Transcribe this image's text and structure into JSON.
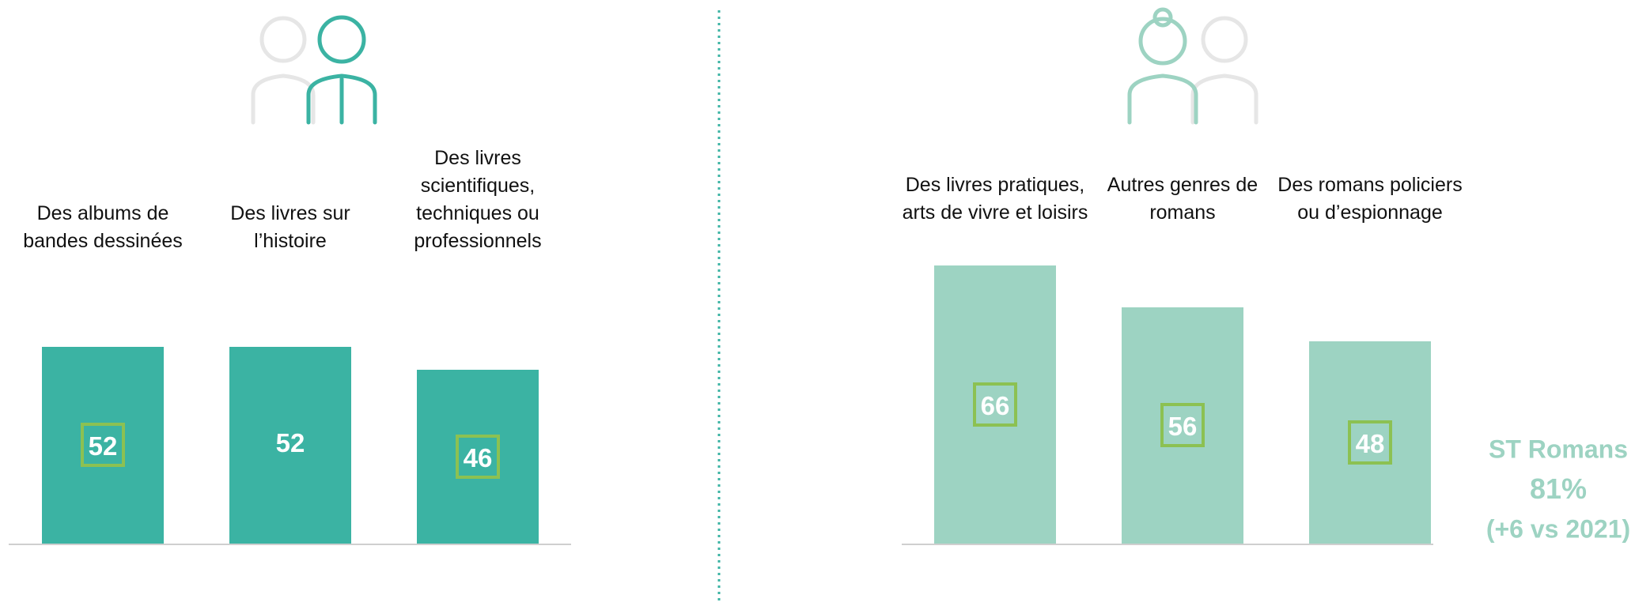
{
  "chart_data": [
    {
      "type": "bar",
      "categories": [
        "Des albums de bandes dessinées",
        "Des livres sur l’histoire",
        "Des livres scientifiques, techniques ou professionnels"
      ],
      "values": [
        52,
        52,
        46
      ],
      "boxed": [
        true,
        false,
        true
      ],
      "color": "#3bb3a3",
      "ylim": [
        0,
        100
      ]
    },
    {
      "type": "bar",
      "categories": [
        "Des livres pratiques, arts de vivre et loisirs",
        "Autres genres de romans",
        "Des romans policiers ou d’espionnage"
      ],
      "values": [
        66,
        56,
        48
      ],
      "boxed": [
        true,
        true,
        true
      ],
      "color": "#9dd3c2",
      "ylim": [
        0,
        100
      ],
      "annotations": [
        "ST Romans",
        "81%",
        "(+6 vs 2021)"
      ]
    }
  ]
}
